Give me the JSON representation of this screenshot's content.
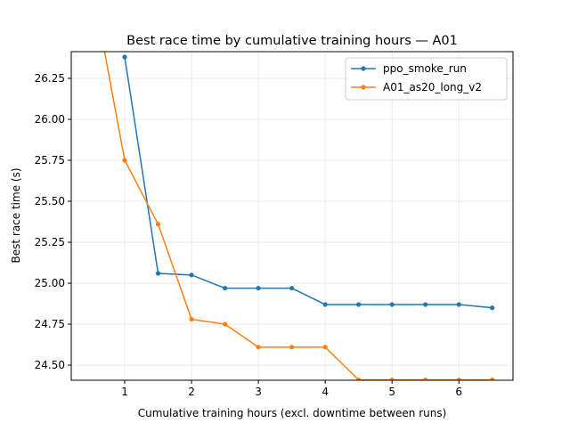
{
  "chart_data": {
    "type": "line",
    "title": "Best race time by cumulative training hours — A01",
    "xlabel": "Cumulative training hours (excl. downtime between runs)",
    "ylabel": "Best race time (s)",
    "xlim": [
      0.2,
      6.81
    ],
    "ylim": [
      24.408,
      26.413
    ],
    "xticks": [
      1,
      2,
      3,
      4,
      5,
      6
    ],
    "yticks": [
      24.5,
      24.75,
      25.0,
      25.25,
      25.5,
      25.75,
      26.0,
      26.25
    ],
    "ytick_labels": [
      "24.50",
      "24.75",
      "25.00",
      "25.25",
      "25.50",
      "25.75",
      "26.00",
      "26.25"
    ],
    "grid": true,
    "legend_position": "top-right",
    "series": [
      {
        "name": "ppo_smoke_run",
        "color": "#1f77b4",
        "x": [
          1,
          1.5,
          2,
          2.5,
          3,
          3.5,
          4,
          4.5,
          5,
          5.5,
          6,
          6.5
        ],
        "y": [
          26.38,
          25.06,
          25.05,
          24.97,
          24.97,
          24.97,
          24.87,
          24.87,
          24.87,
          24.87,
          24.87,
          24.85
        ]
      },
      {
        "name": "A01_as20_long_v2",
        "color": "#ff7f0e",
        "x": [
          0.5,
          1,
          1.5,
          2,
          2.5,
          3,
          3.5,
          4,
          4.5,
          5,
          5.5,
          6,
          6.5
        ],
        "y": [
          26.85,
          25.75,
          25.36,
          24.78,
          24.75,
          24.61,
          24.61,
          24.61,
          24.41,
          24.41,
          24.41,
          24.41,
          24.41
        ]
      }
    ]
  }
}
